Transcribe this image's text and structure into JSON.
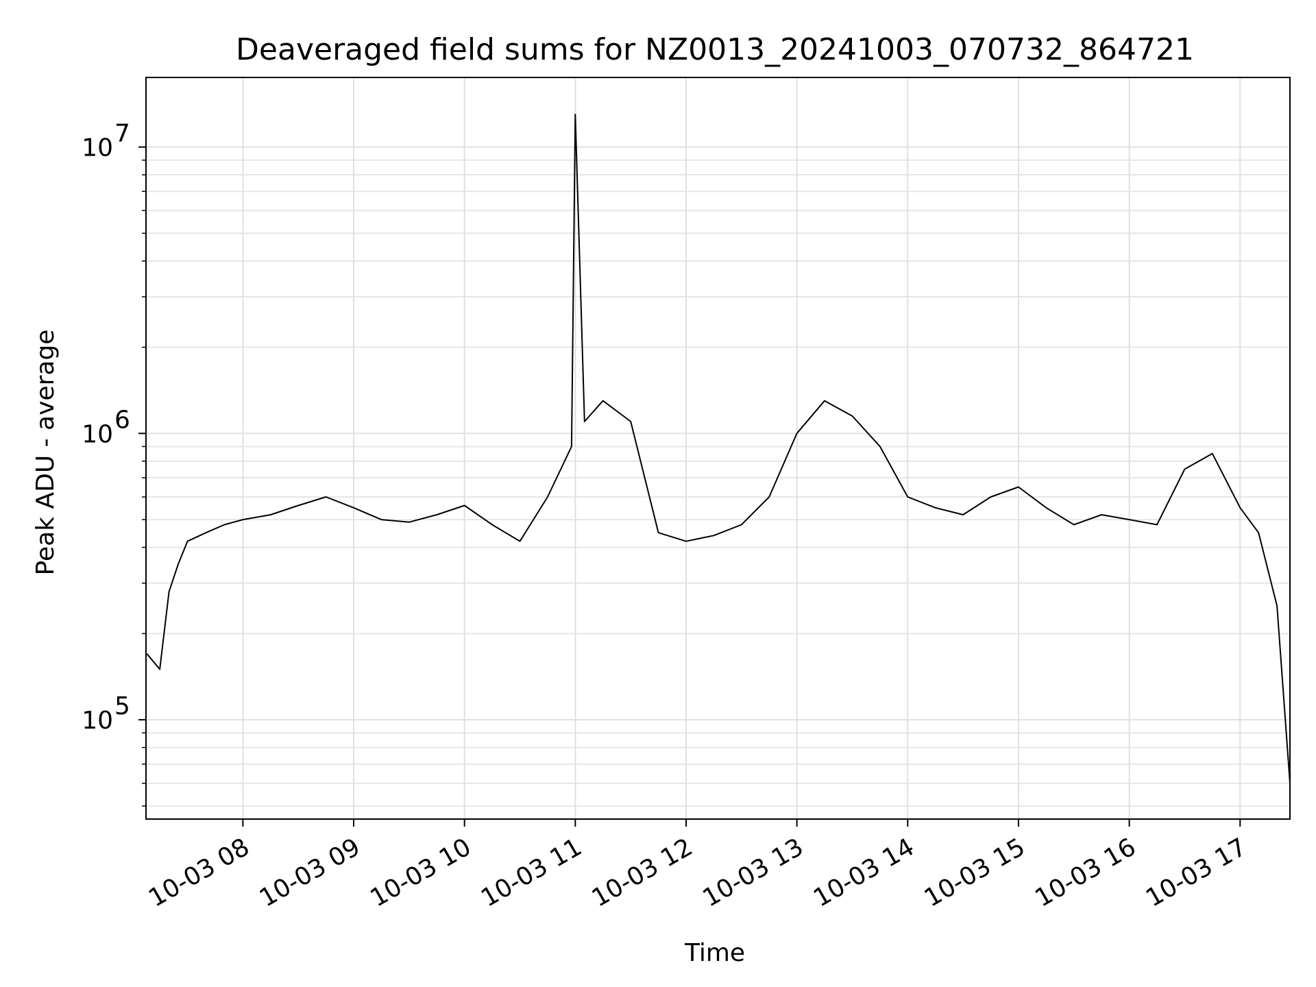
{
  "chart_data": {
    "type": "line",
    "title": "Deaveraged field sums for NZ0013_20241003_070732_864721",
    "xlabel": "Time",
    "ylabel": "Peak ADU - average",
    "x_start": "2024-10-03T07:07:32",
    "x_end": "2024-10-03T17:27:00",
    "xlim": [
      "2024-10-03T07:07:32",
      "2024-10-03T17:27:00"
    ],
    "ylim": [
      45000,
      17500000
    ],
    "yscale": "log",
    "grid": true,
    "line_color": "#000000",
    "x_ticks": [
      {
        "time": "2024-10-03T08:00",
        "label": "10-03 08"
      },
      {
        "time": "2024-10-03T09:00",
        "label": "10-03 09"
      },
      {
        "time": "2024-10-03T10:00",
        "label": "10-03 10"
      },
      {
        "time": "2024-10-03T11:00",
        "label": "10-03 11"
      },
      {
        "time": "2024-10-03T12:00",
        "label": "10-03 12"
      },
      {
        "time": "2024-10-03T13:00",
        "label": "10-03 13"
      },
      {
        "time": "2024-10-03T14:00",
        "label": "10-03 14"
      },
      {
        "time": "2024-10-03T15:00",
        "label": "10-03 15"
      },
      {
        "time": "2024-10-03T16:00",
        "label": "10-03 16"
      },
      {
        "time": "2024-10-03T17:00",
        "label": "10-03 17"
      }
    ],
    "y_ticks": [
      {
        "value": 100000,
        "base": "10",
        "exp": "5"
      },
      {
        "value": 1000000,
        "base": "10",
        "exp": "6"
      },
      {
        "value": 10000000,
        "base": "10",
        "exp": "7"
      }
    ],
    "series": [
      {
        "points": [
          [
            "2024-10-03T07:08",
            170000
          ],
          [
            "2024-10-03T07:15",
            150000
          ],
          [
            "2024-10-03T07:20",
            280000
          ],
          [
            "2024-10-03T07:25",
            350000
          ],
          [
            "2024-10-03T07:30",
            420000
          ],
          [
            "2024-10-03T07:40",
            450000
          ],
          [
            "2024-10-03T07:50",
            480000
          ],
          [
            "2024-10-03T08:00",
            500000
          ],
          [
            "2024-10-03T08:15",
            520000
          ],
          [
            "2024-10-03T08:30",
            560000
          ],
          [
            "2024-10-03T08:45",
            600000
          ],
          [
            "2024-10-03T09:00",
            550000
          ],
          [
            "2024-10-03T09:15",
            500000
          ],
          [
            "2024-10-03T09:30",
            490000
          ],
          [
            "2024-10-03T09:45",
            520000
          ],
          [
            "2024-10-03T10:00",
            560000
          ],
          [
            "2024-10-03T10:15",
            480000
          ],
          [
            "2024-10-03T10:30",
            420000
          ],
          [
            "2024-10-03T10:45",
            600000
          ],
          [
            "2024-10-03T10:58",
            900000
          ],
          [
            "2024-10-03T11:00",
            13000000
          ],
          [
            "2024-10-03T11:05",
            1100000
          ],
          [
            "2024-10-03T11:15",
            1300000
          ],
          [
            "2024-10-03T11:30",
            1100000
          ],
          [
            "2024-10-03T11:45",
            450000
          ],
          [
            "2024-10-03T12:00",
            420000
          ],
          [
            "2024-10-03T12:15",
            440000
          ],
          [
            "2024-10-03T12:30",
            480000
          ],
          [
            "2024-10-03T12:45",
            600000
          ],
          [
            "2024-10-03T13:00",
            1000000
          ],
          [
            "2024-10-03T13:15",
            1300000
          ],
          [
            "2024-10-03T13:30",
            1150000
          ],
          [
            "2024-10-03T13:45",
            900000
          ],
          [
            "2024-10-03T14:00",
            600000
          ],
          [
            "2024-10-03T14:15",
            550000
          ],
          [
            "2024-10-03T14:30",
            520000
          ],
          [
            "2024-10-03T14:45",
            600000
          ],
          [
            "2024-10-03T15:00",
            650000
          ],
          [
            "2024-10-03T15:15",
            550000
          ],
          [
            "2024-10-03T15:30",
            480000
          ],
          [
            "2024-10-03T15:45",
            520000
          ],
          [
            "2024-10-03T16:00",
            500000
          ],
          [
            "2024-10-03T16:15",
            480000
          ],
          [
            "2024-10-03T16:30",
            750000
          ],
          [
            "2024-10-03T16:45",
            850000
          ],
          [
            "2024-10-03T17:00",
            550000
          ],
          [
            "2024-10-03T17:10",
            450000
          ],
          [
            "2024-10-03T17:20",
            250000
          ],
          [
            "2024-10-03T17:27",
            60000
          ]
        ]
      }
    ]
  }
}
